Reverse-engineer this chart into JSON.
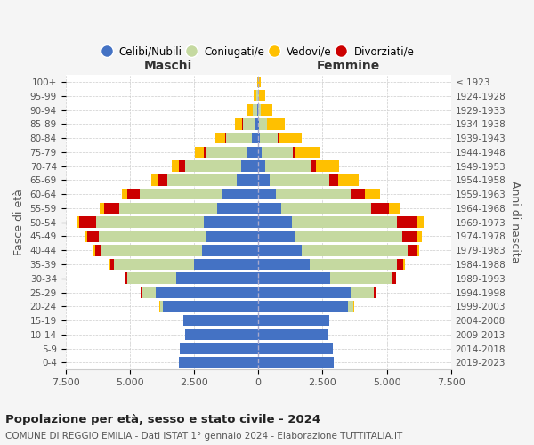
{
  "age_groups": [
    "0-4",
    "5-9",
    "10-14",
    "15-19",
    "20-24",
    "25-29",
    "30-34",
    "35-39",
    "40-44",
    "45-49",
    "50-54",
    "55-59",
    "60-64",
    "65-69",
    "70-74",
    "75-79",
    "80-84",
    "85-89",
    "90-94",
    "95-99",
    "100+"
  ],
  "birth_years": [
    "2019-2023",
    "2014-2018",
    "2009-2013",
    "2004-2008",
    "1999-2003",
    "1994-1998",
    "1989-1993",
    "1984-1988",
    "1979-1983",
    "1974-1978",
    "1969-1973",
    "1964-1968",
    "1959-1963",
    "1954-1958",
    "1949-1953",
    "1944-1948",
    "1939-1943",
    "1934-1938",
    "1929-1933",
    "1924-1928",
    "≤ 1923"
  ],
  "male_celibi": [
    3100,
    3050,
    2850,
    2900,
    3700,
    4000,
    3200,
    2500,
    2200,
    2000,
    2100,
    1600,
    1400,
    850,
    650,
    420,
    250,
    100,
    40,
    15,
    5
  ],
  "male_coniugati": [
    0,
    0,
    0,
    10,
    120,
    550,
    1900,
    3100,
    3900,
    4200,
    4200,
    3800,
    3200,
    2700,
    2200,
    1600,
    1000,
    500,
    160,
    50,
    10
  ],
  "male_vedovi": [
    0,
    0,
    0,
    0,
    5,
    10,
    20,
    30,
    50,
    80,
    120,
    180,
    200,
    250,
    300,
    350,
    380,
    300,
    200,
    100,
    30
  ],
  "male_divorziati": [
    0,
    0,
    0,
    0,
    10,
    30,
    80,
    150,
    250,
    450,
    650,
    600,
    500,
    350,
    220,
    100,
    40,
    15,
    5,
    2,
    0
  ],
  "female_nubili": [
    2950,
    2900,
    2700,
    2750,
    3500,
    3600,
    2800,
    2000,
    1700,
    1400,
    1300,
    900,
    700,
    450,
    280,
    150,
    70,
    25,
    8,
    3,
    1
  ],
  "female_coniugate": [
    0,
    0,
    0,
    15,
    200,
    900,
    2400,
    3400,
    4100,
    4200,
    4100,
    3500,
    2900,
    2300,
    1800,
    1200,
    700,
    300,
    100,
    30,
    5
  ],
  "female_vedove": [
    0,
    0,
    0,
    0,
    5,
    15,
    30,
    60,
    100,
    180,
    300,
    450,
    600,
    800,
    900,
    950,
    900,
    700,
    450,
    250,
    80
  ],
  "female_divorziate": [
    0,
    0,
    0,
    0,
    15,
    60,
    150,
    250,
    380,
    600,
    750,
    700,
    550,
    350,
    180,
    80,
    30,
    10,
    3,
    1,
    0
  ],
  "colors": {
    "celibi": "#4472c4",
    "coniugati": "#c5d9a0",
    "vedovi": "#ffc000",
    "divorziati": "#cc0000"
  },
  "title": "Popolazione per età, sesso e stato civile - 2024",
  "subtitle": "COMUNE DI REGGIO EMILIA - Dati ISTAT 1° gennaio 2024 - Elaborazione TUTTITALIA.IT",
  "xlabel_left": "Maschi",
  "xlabel_right": "Femmine",
  "ylabel": "Fasce di età",
  "ylabel_right": "Anni di nascita",
  "xlim": 7500,
  "xticklabels": [
    "7.500",
    "5.000",
    "2.500",
    "0",
    "2.500",
    "5.000",
    "7.500"
  ],
  "bg_color": "#f5f5f5",
  "plot_bg": "#ffffff"
}
